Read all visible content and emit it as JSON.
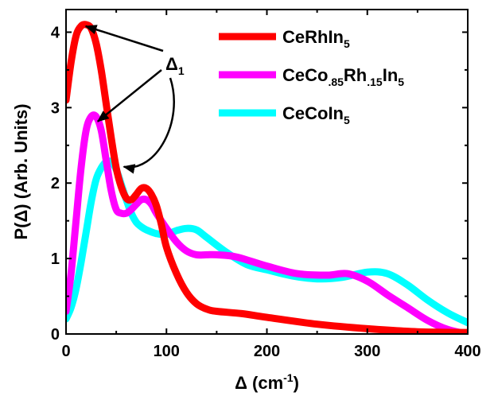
{
  "chart_data": {
    "type": "line",
    "xlabel": {
      "base": "Δ (cm",
      "sup": "-1",
      "end": ")"
    },
    "ylabel": "P(Δ) (Arb. Units)",
    "xlim": [
      0,
      400
    ],
    "ylim": [
      0,
      4.3
    ],
    "xticks": [
      0,
      100,
      200,
      300,
      400
    ],
    "yticks": [
      0,
      1,
      2,
      3,
      4
    ],
    "xtick_labels": [
      "0",
      "100",
      "200",
      "300",
      "400"
    ],
    "ytick_labels": [
      "0",
      "1",
      "2",
      "3",
      "4"
    ],
    "grid": false,
    "legend_position": "top-right",
    "annotation": {
      "base": "Δ",
      "sub": "1"
    },
    "series": [
      {
        "name": "CeRhIn5",
        "label_parts": [
          {
            "t": "CeRhIn",
            "s": false
          },
          {
            "t": "5",
            "s": true
          }
        ],
        "color": "#ff0000",
        "x": [
          0,
          5,
          10,
          15,
          20,
          25,
          30,
          35,
          40,
          45,
          50,
          55,
          60,
          65,
          70,
          75,
          80,
          85,
          90,
          95,
          100,
          110,
          120,
          130,
          140,
          150,
          175,
          200,
          250,
          300,
          350,
          400
        ],
        "y": [
          3.1,
          3.6,
          3.95,
          4.08,
          4.1,
          4.05,
          3.85,
          3.5,
          3.05,
          2.6,
          2.2,
          1.95,
          1.8,
          1.78,
          1.85,
          1.93,
          1.93,
          1.85,
          1.7,
          1.45,
          1.15,
          0.8,
          0.55,
          0.4,
          0.33,
          0.3,
          0.27,
          0.22,
          0.13,
          0.07,
          0.03,
          0.02
        ]
      },
      {
        "name": "CeCo.85Rh.15In5",
        "label_parts": [
          {
            "t": "CeCo",
            "s": false
          },
          {
            "t": ".85",
            "s": true
          },
          {
            "t": "Rh",
            "s": false
          },
          {
            "t": ".15",
            "s": true
          },
          {
            "t": "In",
            "s": false
          },
          {
            "t": "5",
            "s": true
          }
        ],
        "color": "#ff00ff",
        "x": [
          0,
          5,
          10,
          15,
          20,
          25,
          30,
          35,
          40,
          45,
          50,
          55,
          60,
          65,
          70,
          75,
          80,
          85,
          90,
          100,
          110,
          120,
          130,
          140,
          150,
          170,
          200,
          230,
          260,
          280,
          300,
          320,
          340,
          360,
          380,
          400
        ],
        "y": [
          0.3,
          0.8,
          1.5,
          2.2,
          2.7,
          2.88,
          2.88,
          2.7,
          2.3,
          1.9,
          1.65,
          1.6,
          1.6,
          1.65,
          1.72,
          1.78,
          1.78,
          1.72,
          1.6,
          1.4,
          1.22,
          1.1,
          1.05,
          1.05,
          1.05,
          1.02,
          0.9,
          0.8,
          0.78,
          0.8,
          0.7,
          0.52,
          0.35,
          0.18,
          0.06,
          0.0
        ]
      },
      {
        "name": "CeCoIn5",
        "label_parts": [
          {
            "t": "CeCoIn",
            "s": false
          },
          {
            "t": "5",
            "s": true
          }
        ],
        "color": "#00ffff",
        "x": [
          0,
          5,
          10,
          15,
          20,
          25,
          30,
          35,
          40,
          45,
          50,
          55,
          60,
          65,
          70,
          75,
          80,
          90,
          100,
          110,
          120,
          130,
          140,
          160,
          180,
          200,
          225,
          250,
          275,
          300,
          320,
          340,
          360,
          380,
          400
        ],
        "y": [
          0.2,
          0.35,
          0.6,
          0.95,
          1.35,
          1.75,
          2.05,
          2.2,
          2.28,
          2.28,
          2.18,
          1.98,
          1.78,
          1.6,
          1.48,
          1.42,
          1.38,
          1.33,
          1.32,
          1.37,
          1.4,
          1.38,
          1.28,
          1.08,
          0.92,
          0.85,
          0.77,
          0.73,
          0.75,
          0.82,
          0.8,
          0.65,
          0.45,
          0.28,
          0.15
        ]
      }
    ]
  }
}
